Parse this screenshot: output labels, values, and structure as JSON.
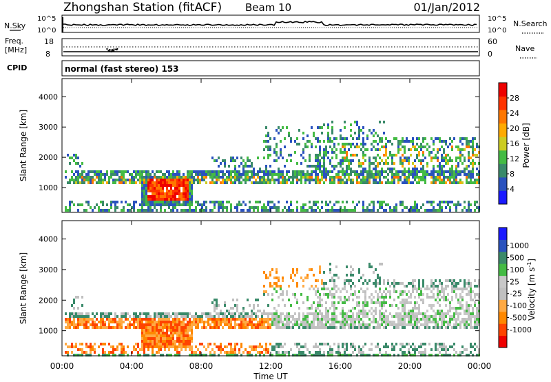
{
  "header": {
    "title": "Zhongshan Station (fitACF)",
    "beam": "Beam 10",
    "date": "01/Jan/2012"
  },
  "strip_nsky": {
    "label": "N.Sky",
    "left_ticks": [
      "10^5",
      "10^0"
    ],
    "right_ticks": [
      "10^5",
      "10^0"
    ],
    "right_label": "N.Search"
  },
  "strip_freq": {
    "label_line1": "Freq.",
    "label_line2": "[MHz]",
    "left_ticks": [
      "18",
      "8"
    ],
    "right_ticks": [
      "60",
      "0"
    ],
    "right_label": "Nave"
  },
  "strip_cpid": {
    "label": "CPID",
    "text": "normal (fast stereo) 153"
  },
  "colors": {
    "power": [
      "#1a1aff",
      "#2a52be",
      "#3a8a6a",
      "#44bb44",
      "#cccc22",
      "#ffaa00",
      "#ff7700",
      "#ff3300",
      "#ee0000"
    ],
    "velocity": [
      "#ee0000",
      "#ff4400",
      "#ff8800",
      "#ffaa44",
      "#c0c0c0",
      "#c8c8c8",
      "#44bb44",
      "#3a8a6a",
      "#2a52be",
      "#1a1aff"
    ]
  },
  "chart_data": [
    {
      "type": "heatmap",
      "name": "Power panel",
      "ylabel": "Slant Range [km]",
      "xlabel": "",
      "xlim": [
        "00:00",
        "24:00"
      ],
      "ylim": [
        180,
        4600
      ],
      "yticks": [
        "1000",
        "2000",
        "3000",
        "4000"
      ],
      "colorbar_label": "Power [dB]",
      "colorbar_ticks": [
        "4",
        "8",
        "12",
        "16",
        "20",
        "24",
        "28"
      ],
      "colorbar_range": [
        0,
        32
      ]
    },
    {
      "type": "heatmap",
      "name": "Velocity panel",
      "ylabel": "Slant Range [km]",
      "xlabel": "Time UT",
      "xlim": [
        "00:00",
        "24:00"
      ],
      "ylim": [
        180,
        4600
      ],
      "xticks": [
        "00:00",
        "04:00",
        "08:00",
        "12:00",
        "16:00",
        "20:00",
        "00:00"
      ],
      "yticks": [
        "1000",
        "2000",
        "3000",
        "4000"
      ],
      "colorbar_label": "Velocity [m s",
      "colorbar_label_sup": "-1",
      "colorbar_label_end": "]",
      "colorbar_ticks": [
        "1000",
        "500",
        "100",
        "25",
        "-25",
        "-100",
        "-500",
        "-1000"
      ]
    }
  ]
}
